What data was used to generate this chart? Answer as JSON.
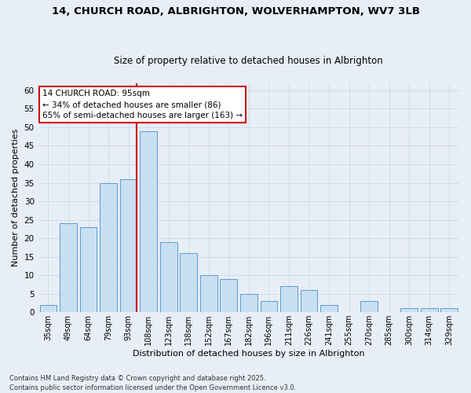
{
  "title_line1": "14, CHURCH ROAD, ALBRIGHTON, WOLVERHAMPTON, WV7 3LB",
  "title_line2": "Size of property relative to detached houses in Albrighton",
  "xlabel": "Distribution of detached houses by size in Albrighton",
  "ylabel": "Number of detached properties",
  "bar_labels": [
    "35sqm",
    "49sqm",
    "64sqm",
    "79sqm",
    "93sqm",
    "108sqm",
    "123sqm",
    "138sqm",
    "152sqm",
    "167sqm",
    "182sqm",
    "196sqm",
    "211sqm",
    "226sqm",
    "241sqm",
    "255sqm",
    "270sqm",
    "285sqm",
    "300sqm",
    "314sqm",
    "329sqm"
  ],
  "bar_values": [
    2,
    24,
    23,
    35,
    36,
    49,
    19,
    16,
    10,
    9,
    5,
    3,
    7,
    6,
    2,
    0,
    3,
    0,
    1,
    1,
    1
  ],
  "bar_color": "#c9dff2",
  "bar_edge_color": "#5b9bd5",
  "ylim": [
    0,
    62
  ],
  "yticks": [
    0,
    5,
    10,
    15,
    20,
    25,
    30,
    35,
    40,
    45,
    50,
    55,
    60
  ],
  "property_bin_index": 4,
  "annotation_title": "14 CHURCH ROAD: 95sqm",
  "annotation_line2": "← 34% of detached houses are smaller (86)",
  "annotation_line3": "65% of semi-detached houses are larger (163) →",
  "annotation_box_color": "#ffffff",
  "annotation_box_edge": "#cc0000",
  "red_line_color": "#cc0000",
  "grid_color": "#cdd8ea",
  "background_color": "#e8eef6",
  "footer_line1": "Contains HM Land Registry data © Crown copyright and database right 2025.",
  "footer_line2": "Contains public sector information licensed under the Open Government Licence v3.0."
}
